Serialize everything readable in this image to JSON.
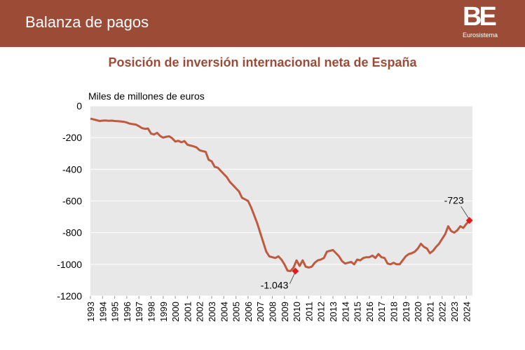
{
  "header": {
    "title": "Balanza de pagos",
    "logo_mark": "BE",
    "logo_sub": "Eurosistema"
  },
  "colors": {
    "header_bg": "#9c4b37",
    "line": "#bf5a3f",
    "marker": "#e8191c",
    "plot_bg": "#e8e8e8",
    "title": "#9c4b37"
  },
  "chart_data": {
    "type": "line",
    "title": "Posición de inversión internacional neta de España",
    "ylabel": "Miles de millones de euros",
    "xlabel": "",
    "ylim": [
      -1200,
      0
    ],
    "yticks": [
      0,
      -200,
      -400,
      -600,
      -800,
      -1000,
      -1200
    ],
    "ytick_labels": [
      "0",
      "-200",
      "-400",
      "-600",
      "-800",
      "-1000",
      "-1200"
    ],
    "categories": [
      "1993",
      "1994",
      "1995",
      "1996",
      "1997",
      "1998",
      "1999",
      "2000",
      "2001",
      "2002",
      "2003",
      "2004",
      "2005",
      "2006",
      "2007",
      "2008",
      "2009",
      "2010",
      "2011",
      "2012",
      "2013",
      "2014",
      "2015",
      "2016",
      "2017",
      "2018",
      "2019",
      "2020",
      "2021",
      "2022",
      "2023",
      "2024"
    ],
    "grid": true,
    "series": [
      {
        "name": "Posición de inversión internacional neta",
        "x": [
          1993.0,
          1993.25,
          1993.5,
          1993.75,
          1994.0,
          1994.25,
          1994.5,
          1994.75,
          1995.0,
          1995.25,
          1995.5,
          1995.75,
          1996.0,
          1996.25,
          1996.5,
          1996.75,
          1997.0,
          1997.25,
          1997.5,
          1997.75,
          1998.0,
          1998.25,
          1998.5,
          1998.75,
          1999.0,
          1999.25,
          1999.5,
          1999.75,
          2000.0,
          2000.25,
          2000.5,
          2000.75,
          2001.0,
          2001.25,
          2001.5,
          2001.75,
          2002.0,
          2002.25,
          2002.5,
          2002.75,
          2003.0,
          2003.25,
          2003.5,
          2003.75,
          2004.0,
          2004.25,
          2004.5,
          2004.75,
          2005.0,
          2005.25,
          2005.5,
          2005.75,
          2006.0,
          2006.25,
          2006.5,
          2006.75,
          2007.0,
          2007.25,
          2007.5,
          2007.75,
          2008.0,
          2008.25,
          2008.5,
          2008.75,
          2009.0,
          2009.25,
          2009.5,
          2009.75,
          2010.0,
          2010.25,
          2010.5,
          2010.75,
          2011.0,
          2011.25,
          2011.5,
          2011.75,
          2012.0,
          2012.25,
          2012.5,
          2012.75,
          2013.0,
          2013.25,
          2013.5,
          2013.75,
          2014.0,
          2014.25,
          2014.5,
          2014.75,
          2015.0,
          2015.25,
          2015.5,
          2015.75,
          2016.0,
          2016.25,
          2016.5,
          2016.75,
          2017.0,
          2017.25,
          2017.5,
          2017.75,
          2018.0,
          2018.25,
          2018.5,
          2018.75,
          2019.0,
          2019.25,
          2019.5,
          2019.75,
          2020.0,
          2020.25,
          2020.5,
          2020.75,
          2021.0,
          2021.25,
          2021.5,
          2021.75,
          2022.0,
          2022.25,
          2022.5,
          2022.75,
          2023.0,
          2023.25,
          2023.5,
          2023.75,
          2024.0,
          2024.25
        ],
        "values": [
          -80,
          -85,
          -90,
          -95,
          -93,
          -92,
          -94,
          -93,
          -95,
          -96,
          -98,
          -100,
          -105,
          -112,
          -115,
          -118,
          -128,
          -140,
          -145,
          -143,
          -175,
          -180,
          -170,
          -190,
          -200,
          -195,
          -192,
          -205,
          -225,
          -220,
          -230,
          -222,
          -245,
          -250,
          -255,
          -262,
          -280,
          -285,
          -290,
          -340,
          -350,
          -385,
          -390,
          -410,
          -430,
          -450,
          -480,
          -500,
          -520,
          -540,
          -580,
          -590,
          -600,
          -640,
          -690,
          -740,
          -800,
          -860,
          -920,
          -950,
          -955,
          -960,
          -950,
          -970,
          -1000,
          -1040,
          -1043,
          -1020,
          -975,
          -1010,
          -975,
          -1015,
          -1020,
          -1015,
          -990,
          -975,
          -970,
          -960,
          -920,
          -915,
          -910,
          -930,
          -950,
          -980,
          -995,
          -990,
          -985,
          -1000,
          -970,
          -975,
          -960,
          -955,
          -955,
          -945,
          -960,
          -935,
          -955,
          -960,
          -995,
          -1000,
          -990,
          -1000,
          -1000,
          -975,
          -950,
          -935,
          -930,
          -920,
          -900,
          -870,
          -890,
          -900,
          -930,
          -915,
          -890,
          -870,
          -840,
          -810,
          -760,
          -790,
          -800,
          -785,
          -760,
          -770,
          -745,
          -723
        ]
      }
    ],
    "annotations": [
      {
        "label": "-1.043",
        "x": 2009.9,
        "y": -1043
      },
      {
        "label": "-723",
        "x": 2024.25,
        "y": -723
      }
    ]
  }
}
